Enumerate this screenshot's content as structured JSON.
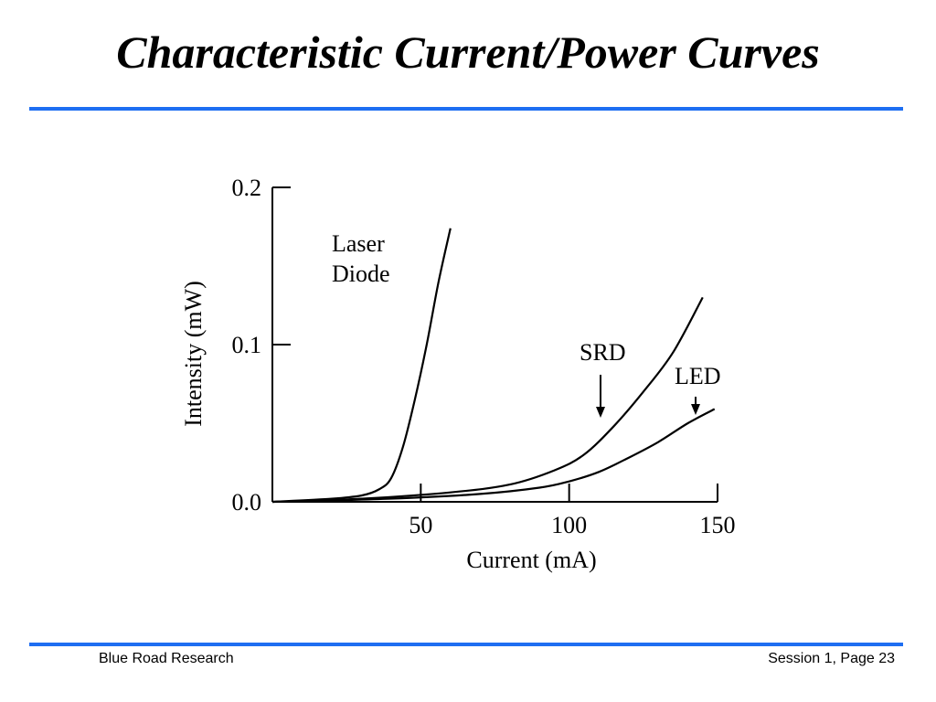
{
  "slide": {
    "title": "Characteristic Current/Power Curves",
    "footer_left": "Blue Road Research",
    "footer_right": "Session 1, Page 23"
  },
  "colors": {
    "accent_rule": "#1e6ef2",
    "text": "#000000"
  },
  "chart_data": {
    "type": "line",
    "xlabel": "Current (mA)",
    "ylabel": "Intensity (mW)",
    "xlim": [
      0,
      150
    ],
    "ylim": [
      0,
      0.2
    ],
    "xticks": [
      50,
      100,
      150
    ],
    "xtick_labels": [
      "50",
      "100",
      "150"
    ],
    "yticks": [
      0,
      0.1,
      0.2
    ],
    "ytick_labels": [
      "0.0",
      "0.1",
      "0.2"
    ],
    "grid": false,
    "series": [
      {
        "name": "Laser Diode",
        "label_lines": [
          "Laser",
          "Diode"
        ],
        "points": [
          [
            0,
            0
          ],
          [
            20,
            0.002
          ],
          [
            30,
            0.004
          ],
          [
            36,
            0.008
          ],
          [
            40,
            0.015
          ],
          [
            44,
            0.035
          ],
          [
            48,
            0.065
          ],
          [
            52,
            0.1
          ],
          [
            56,
            0.14
          ],
          [
            60,
            0.174
          ]
        ]
      },
      {
        "name": "SRD",
        "label_lines": [
          "SRD"
        ],
        "points": [
          [
            0,
            0
          ],
          [
            30,
            0.002
          ],
          [
            60,
            0.006
          ],
          [
            80,
            0.011
          ],
          [
            95,
            0.02
          ],
          [
            105,
            0.03
          ],
          [
            115,
            0.048
          ],
          [
            125,
            0.07
          ],
          [
            135,
            0.095
          ],
          [
            145,
            0.13
          ]
        ]
      },
      {
        "name": "LED",
        "label_lines": [
          "LED"
        ],
        "points": [
          [
            0,
            0
          ],
          [
            40,
            0.002
          ],
          [
            70,
            0.005
          ],
          [
            90,
            0.009
          ],
          [
            100,
            0.013
          ],
          [
            110,
            0.019
          ],
          [
            120,
            0.028
          ],
          [
            130,
            0.038
          ],
          [
            140,
            0.05
          ],
          [
            149,
            0.059
          ]
        ]
      }
    ]
  }
}
